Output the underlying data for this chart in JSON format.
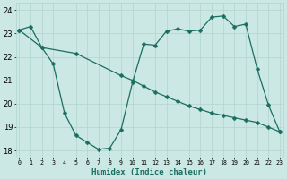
{
  "xlabel": "Humidex (Indice chaleur)",
  "bg_color": "#cce8e4",
  "grid_color": "#b0d4cc",
  "line_color": "#1a6e60",
  "line1_x": [
    0,
    1,
    2,
    3,
    4,
    5,
    6,
    7,
    8,
    9,
    10,
    11,
    12,
    13,
    14,
    15,
    16,
    17,
    18,
    19,
    20,
    21,
    22,
    23
  ],
  "line1_y": [
    23.15,
    23.3,
    22.4,
    21.7,
    19.6,
    18.65,
    18.35,
    18.05,
    18.1,
    18.9,
    20.9,
    22.55,
    22.5,
    23.1,
    23.2,
    23.1,
    23.15,
    23.7,
    23.75,
    23.3,
    23.4,
    21.5,
    19.95,
    18.8
  ],
  "line2_x": [
    0,
    2,
    5,
    9,
    10,
    11,
    12,
    13,
    14,
    15,
    16,
    17,
    18,
    19,
    20,
    21,
    22,
    23
  ],
  "line2_y": [
    23.15,
    22.4,
    22.15,
    21.2,
    21.0,
    20.75,
    20.5,
    20.3,
    20.1,
    19.9,
    19.75,
    19.6,
    19.5,
    19.4,
    19.3,
    19.2,
    19.0,
    18.8
  ],
  "ylim": [
    17.7,
    24.3
  ],
  "xlim": [
    -0.3,
    23.3
  ],
  "yticks": [
    18,
    19,
    20,
    21,
    22,
    23,
    24
  ],
  "xticks": [
    0,
    1,
    2,
    3,
    4,
    5,
    6,
    7,
    8,
    9,
    10,
    11,
    12,
    13,
    14,
    15,
    16,
    17,
    18,
    19,
    20,
    21,
    22,
    23
  ],
  "xtick_labels": [
    "0",
    "1",
    "2",
    "3",
    "4",
    "5",
    "6",
    "7",
    "8",
    "9",
    "10",
    "11",
    "12",
    "13",
    "14",
    "15",
    "16",
    "17",
    "18",
    "19",
    "20",
    "21",
    "22",
    "23"
  ],
  "markersize": 2.5,
  "linewidth": 0.9
}
